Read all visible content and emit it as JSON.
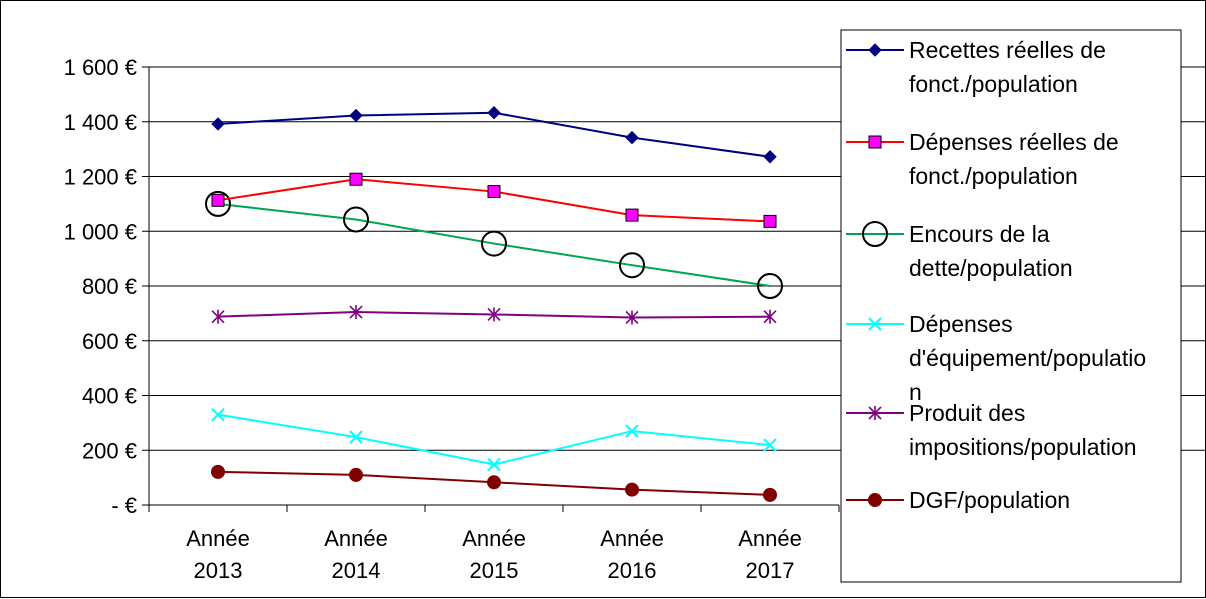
{
  "chart_data": {
    "type": "line",
    "categories": [
      [
        "Année",
        "2013"
      ],
      [
        "Année",
        "2014"
      ],
      [
        "Année",
        "2015"
      ],
      [
        "Année",
        "2016"
      ],
      [
        "Année",
        "2017"
      ]
    ],
    "ylim": [
      0,
      1600
    ],
    "yticks": [
      {
        "value": 0,
        "label": "-   €"
      },
      {
        "value": 200,
        "label": "200 €"
      },
      {
        "value": 400,
        "label": "400 €"
      },
      {
        "value": 600,
        "label": "600 €"
      },
      {
        "value": 800,
        "label": "800 €"
      },
      {
        "value": 1000,
        "label": "1 000 €"
      },
      {
        "value": 1200,
        "label": "1 200 €"
      },
      {
        "value": 1400,
        "label": "1 400 €"
      },
      {
        "value": 1600,
        "label": "1 600 €"
      }
    ],
    "grid": true,
    "legend_position": "right",
    "series": [
      {
        "name_lines": [
          "Recettes réelles de",
          "fonct./population"
        ],
        "color": "#000080",
        "marker": "diamond",
        "values": [
          1392,
          1423,
          1433,
          1342,
          1272
        ]
      },
      {
        "name_lines": [
          "Dépenses réelles de",
          "fonct./population"
        ],
        "color": "#ff0000",
        "marker": "square",
        "values": [
          1113,
          1190,
          1145,
          1059,
          1036
        ]
      },
      {
        "name_lines": [
          "Encours de la",
          "dette/population"
        ],
        "color": "#00a550",
        "marker": "circle-open",
        "values": [
          1100,
          1043,
          955,
          876,
          800
        ]
      },
      {
        "name_lines": [
          "Dépenses",
          "d'équipement/populatio",
          "n"
        ],
        "color": "#00ffff",
        "marker": "x",
        "values": [
          330,
          248,
          148,
          270,
          219
        ]
      },
      {
        "name_lines": [
          "Produit des",
          "impositions/population"
        ],
        "color": "#800080",
        "marker": "star",
        "values": [
          688,
          705,
          696,
          685,
          688
        ]
      },
      {
        "name_lines": [
          "DGF/population"
        ],
        "color": "#800000",
        "marker": "circle",
        "values": [
          121,
          110,
          83,
          56,
          37
        ]
      }
    ]
  }
}
